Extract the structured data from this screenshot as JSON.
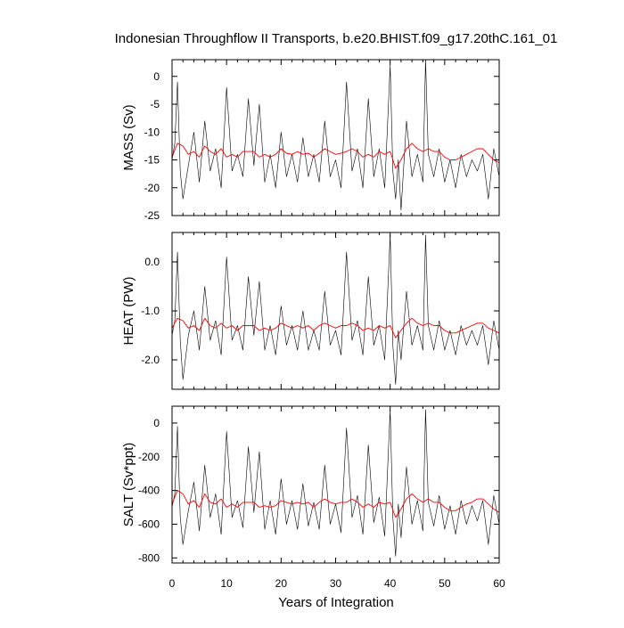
{
  "chart_data": {
    "type": "line",
    "title": "Indonesian Throughflow II Transports, b.e20.BHIST.f09_g17.20thC.161_01",
    "xlabel": "Years of Integration",
    "xlim": [
      0,
      60
    ],
    "xticks": [
      0,
      10,
      20,
      30,
      40,
      50,
      60
    ],
    "xtick_labels": [
      "0",
      "10",
      "20",
      "30",
      "40",
      "50",
      "60"
    ],
    "colors": {
      "monthly": "#000000",
      "annual_mean": "#ff0000"
    },
    "panels": [
      {
        "ylabel": "MASS (Sv)",
        "ylim": [
          -25,
          3
        ],
        "yticks": [
          0,
          -5,
          -10,
          -15,
          -20,
          -25
        ],
        "ytick_labels": [
          "0",
          "-5",
          "-10",
          "-15",
          "-20",
          "-25"
        ],
        "series": [
          {
            "kind": "monthly",
            "x": [
              0,
              0.5,
              1,
              1.5,
              2,
              3,
              4,
              5,
              6,
              7,
              8,
              9,
              10,
              11,
              12,
              13,
              14,
              15,
              16,
              17,
              18,
              19,
              20,
              21,
              22,
              23,
              24,
              25,
              26,
              27,
              28,
              29,
              30,
              31,
              32,
              33,
              34,
              35,
              36,
              37,
              38,
              39,
              40,
              40.5,
              41,
              41.5,
              42,
              43,
              44,
              45,
              46,
              46.5,
              47,
              48,
              49,
              50,
              51,
              52,
              53,
              54,
              55,
              56,
              57,
              58,
              59,
              60
            ],
            "y": [
              -15,
              -12,
              -1,
              -17,
              -22,
              -16,
              -10,
              -19,
              -8,
              -17,
              -13,
              -20,
              -2,
              -17,
              -14,
              -18,
              -4,
              -16,
              -5,
              -19,
              -14,
              -20,
              -10,
              -18,
              -14,
              -19,
              -11,
              -18,
              -14,
              -19,
              -8,
              -18,
              -15,
              -20,
              -1,
              -17,
              -13,
              -20,
              -4,
              -18,
              -13,
              -20,
              2,
              -17,
              -22,
              -15,
              -24,
              -8,
              -18,
              -14,
              -19,
              3,
              -14,
              -18,
              -13,
              -19,
              -15,
              -20,
              -14,
              -18,
              -15,
              -17,
              -14,
              -22,
              -13,
              -18
            ]
          },
          {
            "kind": "annual_mean",
            "x": [
              0,
              1,
              2,
              3,
              4,
              5,
              6,
              7,
              8,
              9,
              10,
              11,
              12,
              13,
              14,
              15,
              16,
              17,
              18,
              19,
              20,
              21,
              22,
              23,
              24,
              25,
              26,
              27,
              28,
              29,
              30,
              31,
              32,
              33,
              34,
              35,
              36,
              37,
              38,
              39,
              40,
              41,
              42,
              43,
              44,
              45,
              46,
              47,
              48,
              49,
              50,
              51,
              52,
              53,
              54,
              55,
              56,
              57,
              58,
              59,
              60
            ],
            "y": [
              -14.5,
              -12,
              -12.5,
              -14,
              -13.5,
              -14.5,
              -12.5,
              -13.5,
              -14,
              -13,
              -14.5,
              -14,
              -14.5,
              -13.5,
              -13.5,
              -13.5,
              -14.5,
              -14,
              -14.5,
              -14,
              -13,
              -13.8,
              -14,
              -13.5,
              -14,
              -13.8,
              -14.5,
              -13.8,
              -13,
              -13.5,
              -14,
              -13.8,
              -13.5,
              -13,
              -13.5,
              -14.5,
              -14,
              -14.5,
              -13.5,
              -14,
              -13.5,
              -16.5,
              -15,
              -13,
              -12,
              -13,
              -13.5,
              -13,
              -13.5,
              -13.5,
              -14.5,
              -15,
              -15,
              -14.5,
              -14,
              -13.5,
              -13,
              -13,
              -14,
              -15,
              -15.5
            ]
          }
        ]
      },
      {
        "ylabel": "HEAT (PW)",
        "ylim": [
          -2.6,
          0.6
        ],
        "yticks": [
          0.0,
          -1.0,
          -2.0
        ],
        "ytick_labels": [
          "0.0",
          "-1.0",
          "-2.0"
        ],
        "series": [
          {
            "kind": "monthly",
            "x": [
              0,
              0.5,
              1,
              1.5,
              2,
              3,
              4,
              5,
              6,
              7,
              8,
              9,
              10,
              11,
              12,
              13,
              14,
              15,
              16,
              17,
              18,
              19,
              20,
              21,
              22,
              23,
              24,
              25,
              26,
              27,
              28,
              29,
              30,
              31,
              32,
              33,
              34,
              35,
              36,
              37,
              38,
              39,
              40,
              40.5,
              41,
              41.5,
              42,
              43,
              44,
              45,
              46,
              46.5,
              47,
              48,
              49,
              50,
              51,
              52,
              53,
              54,
              55,
              56,
              57,
              58,
              59,
              60
            ],
            "y": [
              -1.5,
              -1.2,
              0.2,
              -1.6,
              -2.4,
              -1.5,
              -1.0,
              -1.8,
              -0.5,
              -1.6,
              -1.2,
              -1.9,
              0.1,
              -1.6,
              -1.3,
              -1.8,
              -0.3,
              -1.5,
              -0.4,
              -1.8,
              -1.3,
              -1.9,
              -0.9,
              -1.7,
              -1.3,
              -1.8,
              -1.0,
              -1.8,
              -1.4,
              -1.8,
              -0.6,
              -1.7,
              -1.4,
              -1.9,
              0.2,
              -1.6,
              -1.2,
              -1.9,
              -0.3,
              -1.7,
              -1.3,
              -2.0,
              0.55,
              -1.7,
              -2.5,
              -1.4,
              -2.0,
              -0.6,
              -1.7,
              -1.3,
              -1.8,
              0.55,
              -1.3,
              -1.8,
              -1.2,
              -1.8,
              -1.4,
              -1.9,
              -1.3,
              -1.7,
              -1.4,
              -1.7,
              -1.3,
              -2.1,
              -1.2,
              -1.8
            ]
          },
          {
            "kind": "annual_mean",
            "x": [
              0,
              1,
              2,
              3,
              4,
              5,
              6,
              7,
              8,
              9,
              10,
              11,
              12,
              13,
              14,
              15,
              16,
              17,
              18,
              19,
              20,
              21,
              22,
              23,
              24,
              25,
              26,
              27,
              28,
              29,
              30,
              31,
              32,
              33,
              34,
              35,
              36,
              37,
              38,
              39,
              40,
              41,
              42,
              43,
              44,
              45,
              46,
              47,
              48,
              49,
              50,
              51,
              52,
              53,
              54,
              55,
              56,
              57,
              58,
              59,
              60
            ],
            "y": [
              -1.35,
              -1.15,
              -1.2,
              -1.35,
              -1.3,
              -1.4,
              -1.15,
              -1.3,
              -1.35,
              -1.25,
              -1.35,
              -1.3,
              -1.4,
              -1.3,
              -1.3,
              -1.3,
              -1.4,
              -1.35,
              -1.4,
              -1.35,
              -1.25,
              -1.3,
              -1.35,
              -1.3,
              -1.35,
              -1.3,
              -1.4,
              -1.3,
              -1.25,
              -1.3,
              -1.35,
              -1.3,
              -1.3,
              -1.25,
              -1.3,
              -1.4,
              -1.35,
              -1.4,
              -1.3,
              -1.35,
              -1.3,
              -1.55,
              -1.4,
              -1.25,
              -1.15,
              -1.25,
              -1.3,
              -1.25,
              -1.3,
              -1.3,
              -1.4,
              -1.45,
              -1.45,
              -1.4,
              -1.35,
              -1.3,
              -1.25,
              -1.25,
              -1.35,
              -1.4,
              -1.45
            ]
          }
        ]
      },
      {
        "ylabel": "SALT (Sv*ppt)",
        "ylim": [
          -830,
          100
        ],
        "yticks": [
          0,
          -200,
          -400,
          -600,
          -800
        ],
        "ytick_labels": [
          "0",
          "-200",
          "-400",
          "-600",
          "-800"
        ],
        "series": [
          {
            "kind": "monthly",
            "x": [
              0,
              0.5,
              1,
              1.5,
              2,
              3,
              4,
              5,
              6,
              7,
              8,
              9,
              10,
              11,
              12,
              13,
              14,
              15,
              16,
              17,
              18,
              19,
              20,
              21,
              22,
              23,
              24,
              25,
              26,
              27,
              28,
              29,
              30,
              31,
              32,
              33,
              34,
              35,
              36,
              37,
              38,
              39,
              40,
              40.5,
              41,
              41.5,
              42,
              43,
              44,
              45,
              46,
              46.5,
              47,
              48,
              49,
              50,
              51,
              52,
              53,
              54,
              55,
              56,
              57,
              58,
              59,
              60
            ],
            "y": [
              -500,
              -420,
              -20,
              -560,
              -720,
              -520,
              -350,
              -640,
              -250,
              -560,
              -420,
              -660,
              -50,
              -560,
              -460,
              -620,
              -140,
              -530,
              -170,
              -630,
              -460,
              -660,
              -330,
              -600,
              -460,
              -630,
              -360,
              -610,
              -470,
              -630,
              -250,
              -600,
              -480,
              -650,
              -30,
              -560,
              -430,
              -660,
              -130,
              -590,
              -440,
              -670,
              80,
              -560,
              -790,
              -480,
              -680,
              -260,
              -600,
              -460,
              -640,
              80,
              -470,
              -610,
              -430,
              -630,
              -490,
              -660,
              -460,
              -600,
              -490,
              -580,
              -460,
              -720,
              -430,
              -600
            ]
          },
          {
            "kind": "annual_mean",
            "x": [
              0,
              1,
              2,
              3,
              4,
              5,
              6,
              7,
              8,
              9,
              10,
              11,
              12,
              13,
              14,
              15,
              16,
              17,
              18,
              19,
              20,
              21,
              22,
              23,
              24,
              25,
              26,
              27,
              28,
              29,
              30,
              31,
              32,
              33,
              34,
              35,
              36,
              37,
              38,
              39,
              40,
              41,
              42,
              43,
              44,
              45,
              46,
              47,
              48,
              49,
              50,
              51,
              52,
              53,
              54,
              55,
              56,
              57,
              58,
              59,
              60
            ],
            "y": [
              -480,
              -400,
              -420,
              -480,
              -460,
              -500,
              -420,
              -470,
              -480,
              -450,
              -500,
              -480,
              -500,
              -470,
              -470,
              -470,
              -500,
              -490,
              -500,
              -490,
              -460,
              -470,
              -480,
              -470,
              -480,
              -470,
              -500,
              -470,
              -450,
              -470,
              -480,
              -470,
              -470,
              -450,
              -470,
              -500,
              -480,
              -500,
              -470,
              -480,
              -470,
              -560,
              -510,
              -450,
              -420,
              -450,
              -470,
              -450,
              -470,
              -470,
              -500,
              -520,
              -520,
              -500,
              -480,
              -470,
              -450,
              -450,
              -480,
              -510,
              -530
            ]
          }
        ]
      }
    ]
  }
}
